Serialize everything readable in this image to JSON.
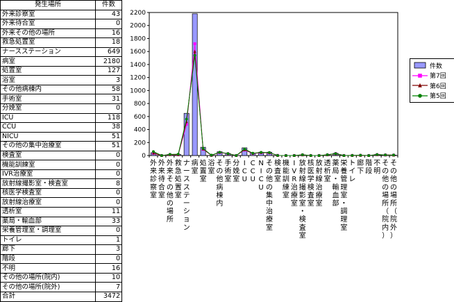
{
  "table": {
    "header_place": "発生場所",
    "header_count": "件数",
    "rows": [
      {
        "name": "外来診察室",
        "count": "43"
      },
      {
        "name": "外来待合室",
        "count": "0"
      },
      {
        "name": "外来その他の場所",
        "count": "16"
      },
      {
        "name": "救急処置室",
        "count": "18"
      },
      {
        "name": "ナースステーション",
        "count": "649"
      },
      {
        "name": "病室",
        "count": "2180"
      },
      {
        "name": "処置室",
        "count": "127"
      },
      {
        "name": "浴室",
        "count": "3"
      },
      {
        "name": "その他病棟内",
        "count": "58"
      },
      {
        "name": "手術室",
        "count": "31"
      },
      {
        "name": "分娩室",
        "count": "0"
      },
      {
        "name": "ICU",
        "count": "118"
      },
      {
        "name": "CCU",
        "count": "38"
      },
      {
        "name": "NICU",
        "count": "51"
      },
      {
        "name": "その他の集中治療室",
        "count": "51"
      },
      {
        "name": "検査室",
        "count": "0"
      },
      {
        "name": "機能訓練室",
        "count": "0"
      },
      {
        "name": "IVR治療室",
        "count": "0"
      },
      {
        "name": "放射線撮影室・検査室",
        "count": "8"
      },
      {
        "name": "核医学検査室",
        "count": "0"
      },
      {
        "name": "放射線治療室",
        "count": "0"
      },
      {
        "name": "透析室",
        "count": "11"
      },
      {
        "name": "薬局・輸血部",
        "count": "33"
      },
      {
        "name": "栄養管理室・調理室",
        "count": "0"
      },
      {
        "name": "トイレ",
        "count": "1"
      },
      {
        "name": "廊下",
        "count": "3"
      },
      {
        "name": "階段",
        "count": "0"
      },
      {
        "name": "不明",
        "count": "16"
      },
      {
        "name": "その他の場所(院内)",
        "count": "10"
      },
      {
        "name": "その他の場所(院外)",
        "count": "7"
      }
    ],
    "total_label": "合計",
    "total_value": "3472"
  },
  "chart_data": {
    "type": "bar",
    "ylim": [
      0,
      2200
    ],
    "ytick_step": 200,
    "yticks": [
      "0",
      "200",
      "400",
      "600",
      "800",
      "1000",
      "1200",
      "1400",
      "1600",
      "1800",
      "2000",
      "2200"
    ],
    "categories": [
      "外来診察室",
      "外来待合室",
      "外来その他の場所",
      "救急処置室",
      "ナースステーション",
      "病室",
      "処置室",
      "浴室",
      "その他病棟内",
      "手術室",
      "分娩室",
      "ICU",
      "CCU",
      "NICU",
      "その他の集中治療室",
      "検査室",
      "機能訓練室",
      "IVR治療室",
      "放射線撮影室・検査室",
      "核医学検査室",
      "放射線治療室",
      "透析室",
      "薬局・輸血部",
      "栄養管理室・調理室",
      "トイレ",
      "廊下",
      "階段",
      "不明",
      "その他の場所(院内)",
      "その他の場所(院外)"
    ],
    "x_tick_labels": [
      "外来診察室",
      "外来待合室",
      "外来その他の場所",
      "救急処置室",
      "ナースステーション",
      "病室",
      "処置室",
      "浴室",
      "その他病棟内",
      "手術室",
      "分娩室",
      "ICU",
      "CCU",
      "NICU",
      "その他の集中治療室",
      "検査室",
      "機能訓練室",
      "IVR治療室",
      "放射線撮影室・検査室",
      "核医学検査室",
      "放射線治療室",
      "透析室",
      "薬局・輸血部",
      "栄養管理室・調理室",
      "トイレ",
      "廊下",
      "階段",
      "不明",
      "その他の場所(院内)",
      "その他の場所(院外)"
    ],
    "series": [
      {
        "name": "件数",
        "kind": "bar",
        "color": "#9999ff",
        "values": [
          43,
          0,
          16,
          18,
          649,
          2180,
          127,
          3,
          58,
          31,
          0,
          118,
          38,
          51,
          51,
          0,
          0,
          0,
          8,
          0,
          0,
          11,
          33,
          0,
          1,
          3,
          0,
          16,
          10,
          7
        ]
      },
      {
        "name": "第7回",
        "kind": "line",
        "color": "#ff00ff",
        "marker": "square",
        "values": [
          35,
          0,
          15,
          12,
          480,
          1720,
          95,
          3,
          45,
          28,
          0,
          85,
          30,
          42,
          40,
          2,
          0,
          0,
          10,
          0,
          0,
          10,
          30,
          0,
          1,
          3,
          0,
          13,
          8,
          6
        ]
      },
      {
        "name": "第6回",
        "kind": "line",
        "color": "#800000",
        "marker": "triangle",
        "values": [
          38,
          0,
          14,
          14,
          520,
          1600,
          100,
          3,
          48,
          30,
          0,
          90,
          32,
          45,
          42,
          2,
          0,
          0,
          10,
          0,
          0,
          11,
          28,
          0,
          1,
          3,
          0,
          14,
          9,
          6
        ]
      },
      {
        "name": "第5回",
        "kind": "line",
        "color": "#008000",
        "marker": "circle",
        "values": [
          60,
          0,
          18,
          20,
          560,
          1540,
          110,
          5,
          50,
          30,
          0,
          100,
          35,
          48,
          45,
          2,
          0,
          0,
          12,
          0,
          0,
          12,
          30,
          0,
          2,
          4,
          0,
          15,
          10,
          8
        ]
      }
    ],
    "grid": false,
    "legend_position": "right"
  },
  "legend": {
    "items": [
      {
        "label": "件数",
        "color": "#9999ff",
        "marker": "bar"
      },
      {
        "label": "第7回",
        "color": "#ff00ff",
        "marker": "square"
      },
      {
        "label": "第6回",
        "color": "#800000",
        "marker": "triangle"
      },
      {
        "label": "第5回",
        "color": "#008000",
        "marker": "circle"
      }
    ]
  }
}
